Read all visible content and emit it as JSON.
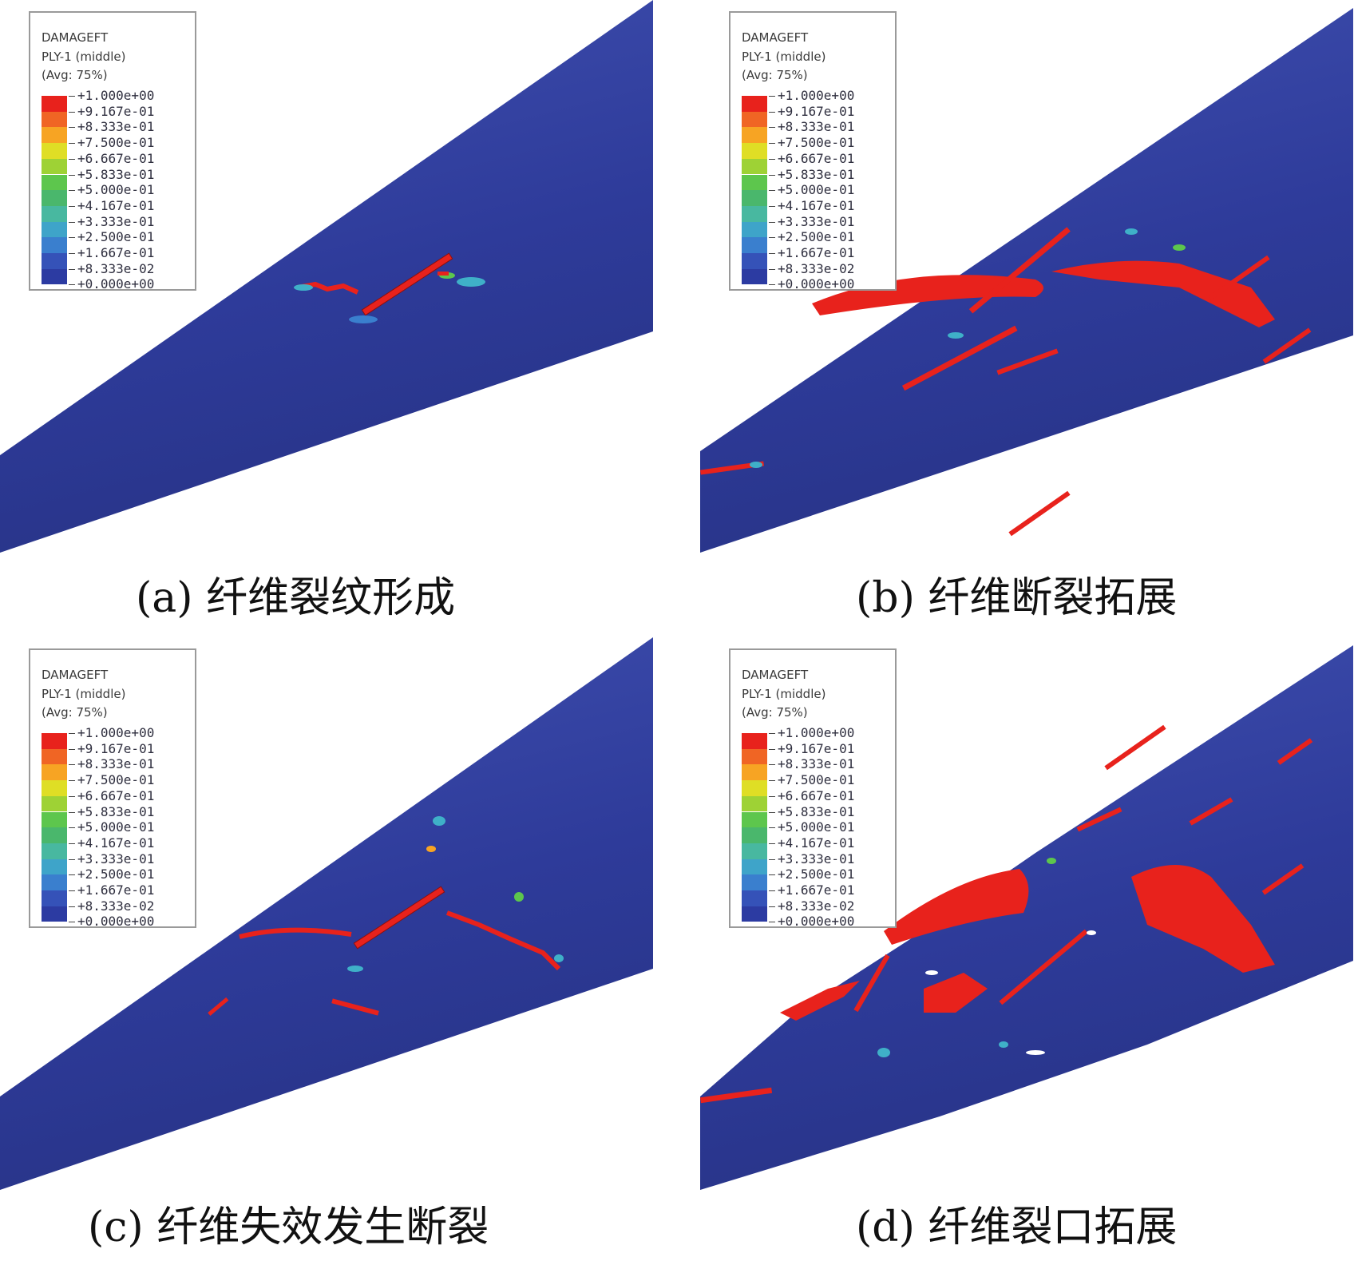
{
  "legend": {
    "variable": "DAMAGEFT",
    "ply": "PLY-1 (middle)",
    "avg": "(Avg: 75%)",
    "ticks": [
      "+1.000e+00",
      "+9.167e-01",
      "+8.333e-01",
      "+7.500e-01",
      "+6.667e-01",
      "+5.833e-01",
      "+5.000e-01",
      "+4.167e-01",
      "+3.333e-01",
      "+2.500e-01",
      "+1.667e-01",
      "+8.333e-02",
      "+0.000e+00"
    ],
    "colors": [
      "#e8221c",
      "#f06524",
      "#f7a423",
      "#dfde25",
      "#9ed235",
      "#5dc64d",
      "#4ab76c",
      "#48b8a0",
      "#3ea4c9",
      "#3a7fce",
      "#3552b8",
      "#2c3ba2"
    ]
  },
  "panels": [
    {
      "caption": "(a) 纤维裂纹形成"
    },
    {
      "caption": "(b) 纤维断裂拓展"
    },
    {
      "caption": "(c) 纤维失效发生断裂"
    },
    {
      "caption": "(d) 纤维裂口拓展"
    }
  ],
  "colors": {
    "tube_base": "#2e3b9a",
    "tube_edge": "#3d4fb0",
    "damage": "#e8221c",
    "partial": "#3fb0c8"
  }
}
